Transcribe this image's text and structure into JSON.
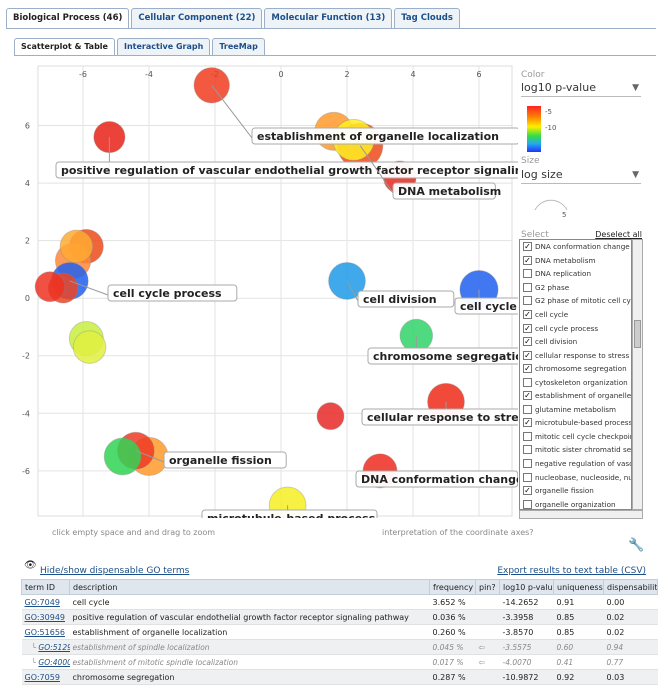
{
  "tabs": [
    {
      "label": "Biological Process (46)",
      "active": true
    },
    {
      "label": "Cellular Component (22)",
      "active": false
    },
    {
      "label": "Molecular Function (13)",
      "active": false
    },
    {
      "label": "Tag Clouds",
      "active": false
    }
  ],
  "subtabs": [
    {
      "label": "Scatterplot & Table",
      "active": true
    },
    {
      "label": "Interactive Graph",
      "active": false
    },
    {
      "label": "TreeMap",
      "active": false
    }
  ],
  "plot": {
    "hint_left": "click empty space and and drag to zoom",
    "hint_right": "interpretation of the coordinate axes?",
    "chart_data": {
      "type": "scatter",
      "xlim": [
        -7,
        7
      ],
      "ylim": [
        -7.5,
        8
      ],
      "x_ticks": [
        "-6",
        "-4",
        "-2",
        "0",
        "2",
        "4",
        "6"
      ],
      "y_ticks": [
        "6",
        "4",
        "2",
        "0",
        "-2",
        "-4",
        "-6"
      ],
      "grid": true,
      "points": [
        {
          "x": -2.1,
          "y": 7.4,
          "size": 0.55,
          "color": "#f03c1e"
        },
        {
          "x": -5.2,
          "y": 5.6,
          "size": 0.4,
          "color": "#e82218"
        },
        {
          "x": 1.6,
          "y": 5.8,
          "size": 0.65,
          "color": "#ff9a2a"
        },
        {
          "x": 2.4,
          "y": 5.3,
          "size": 0.9,
          "color": "#f04a1a"
        },
        {
          "x": 2.2,
          "y": 5.5,
          "size": 0.75,
          "color": "#ffee22"
        },
        {
          "x": 3.6,
          "y": 4.2,
          "size": 0.45,
          "color": "#e8281e"
        },
        {
          "x": -5.9,
          "y": 1.8,
          "size": 0.5,
          "color": "#ee4a1a"
        },
        {
          "x": -6.3,
          "y": 1.3,
          "size": 0.55,
          "color": "#ff8838"
        },
        {
          "x": -6.2,
          "y": 1.8,
          "size": 0.45,
          "color": "#ffaa33"
        },
        {
          "x": -6.4,
          "y": 0.6,
          "size": 0.6,
          "color": "#2060ee"
        },
        {
          "x": -6.6,
          "y": 0.35,
          "size": 0.35,
          "color": "#ee4422"
        },
        {
          "x": -7.0,
          "y": 0.4,
          "size": 0.35,
          "color": "#ee3322"
        },
        {
          "x": -5.9,
          "y": -1.4,
          "size": 0.5,
          "color": "#c8ee40"
        },
        {
          "x": -5.8,
          "y": -1.7,
          "size": 0.45,
          "color": "#e0f040"
        },
        {
          "x": 2.0,
          "y": 0.6,
          "size": 0.6,
          "color": "#1d9ae8"
        },
        {
          "x": 6.0,
          "y": 0.3,
          "size": 0.65,
          "color": "#2060ee"
        },
        {
          "x": 4.1,
          "y": -1.3,
          "size": 0.45,
          "color": "#30d46a"
        },
        {
          "x": 5.0,
          "y": -3.6,
          "size": 0.6,
          "color": "#ee2a18"
        },
        {
          "x": 1.5,
          "y": -4.1,
          "size": 0.25,
          "color": "#e82828"
        },
        {
          "x": -4.0,
          "y": -5.5,
          "size": 0.65,
          "color": "#ff9a2a"
        },
        {
          "x": -4.4,
          "y": -5.3,
          "size": 0.6,
          "color": "#ee3a22"
        },
        {
          "x": -4.8,
          "y": -5.5,
          "size": 0.6,
          "color": "#30d455"
        },
        {
          "x": 3.0,
          "y": -6.0,
          "size": 0.5,
          "color": "#ee2a1e"
        },
        {
          "x": 0.2,
          "y": -7.2,
          "size": 0.6,
          "color": "#f5ee22"
        }
      ],
      "annotations": [
        {
          "text": "establishment of organelle localization",
          "x": -2.1,
          "y": 7.4
        },
        {
          "text": "positive regulation of vascular endothelial growth factor receptor signaling pathway",
          "x": -5.2,
          "y": 5.6
        },
        {
          "text": "DNA metabolism",
          "x": 2.4,
          "y": 5.3
        },
        {
          "text": "cell cycle process",
          "x": -6.4,
          "y": 0.6
        },
        {
          "text": "cell division",
          "x": 2.0,
          "y": 0.6
        },
        {
          "text": "cell cycle",
          "x": 6.0,
          "y": 0.3
        },
        {
          "text": "chromosome segregation",
          "x": 4.1,
          "y": -1.3
        },
        {
          "text": "cellular response to stress",
          "x": 5.0,
          "y": -3.6
        },
        {
          "text": "organelle fission",
          "x": -4.4,
          "y": -5.3
        },
        {
          "text": "DNA conformation change",
          "x": 3.0,
          "y": -6.0
        },
        {
          "text": "microtubule-based process",
          "x": 0.2,
          "y": -7.2
        }
      ]
    }
  },
  "panel": {
    "color_title": "Color",
    "color_value": "log10 p-value",
    "color_ticks": [
      "-5",
      "-10"
    ],
    "size_title": "Size",
    "size_value": "log size",
    "size_tick": "5",
    "select_title": "Select",
    "deselect_label": "Deselect all",
    "items": [
      {
        "label": "DNA conformation change",
        "checked": true
      },
      {
        "label": "DNA metabolism",
        "checked": true
      },
      {
        "label": "DNA replication",
        "checked": false
      },
      {
        "label": "G2 phase",
        "checked": false
      },
      {
        "label": "G2 phase of mitotic cell cycle",
        "checked": false
      },
      {
        "label": "cell cycle",
        "checked": true
      },
      {
        "label": "cell cycle process",
        "checked": true
      },
      {
        "label": "cell division",
        "checked": true
      },
      {
        "label": "cellular response to stress",
        "checked": true
      },
      {
        "label": "chromosome segregation",
        "checked": true
      },
      {
        "label": "cytoskeleton organization",
        "checked": false
      },
      {
        "label": "establishment of organelle l...",
        "checked": true
      },
      {
        "label": "glutamine metabolism",
        "checked": false
      },
      {
        "label": "microtubule-based process",
        "checked": true
      },
      {
        "label": "mitotic cell cycle checkpoint",
        "checked": false
      },
      {
        "label": "mitotic sister chromatid seg...",
        "checked": false
      },
      {
        "label": "negative regulation of vaso...",
        "checked": false
      },
      {
        "label": "nucleobase, nucleoside, nu...",
        "checked": false
      },
      {
        "label": "organelle fission",
        "checked": true
      },
      {
        "label": "organelle organization",
        "checked": false
      }
    ]
  },
  "table": {
    "toggle_label": "Hide/show dispensable GO terms",
    "export_label": "Export results to text table (CSV)",
    "headers": [
      "term ID",
      "description",
      "frequency",
      "pin?",
      "log10 p-value",
      "uniqueness",
      "dispensability"
    ],
    "rows": [
      {
        "id": "GO:7049",
        "desc": "cell cycle",
        "freq": "3.652 %",
        "pin": "",
        "pval": "-14.2652",
        "uniq": "0.91",
        "disp": "0.00",
        "sub": false
      },
      {
        "id": "GO:30949",
        "desc": "positive regulation of vascular endothelial growth factor receptor signaling pathway",
        "freq": "0.036 %",
        "pin": "",
        "pval": "-3.3958",
        "uniq": "0.85",
        "disp": "0.02",
        "sub": false
      },
      {
        "id": "GO:51656",
        "desc": "establishment of organelle localization",
        "freq": "0.260 %",
        "pin": "",
        "pval": "-3.8570",
        "uniq": "0.85",
        "disp": "0.02",
        "sub": false
      },
      {
        "id": "GO:51293",
        "desc": "establishment of spindle localization",
        "freq": "0.045 %",
        "pin": "⇦",
        "pval": "-3.5575",
        "uniq": "0.60",
        "disp": "0.94",
        "sub": true
      },
      {
        "id": "GO:40001",
        "desc": "establishment of mitotic spindle localization",
        "freq": "0.017 %",
        "pin": "⇦",
        "pval": "-4.0070",
        "uniq": "0.41",
        "disp": "0.77",
        "sub": true
      },
      {
        "id": "GO:7059",
        "desc": "chromosome segregation",
        "freq": "0.287 %",
        "pin": "",
        "pval": "-10.9872",
        "uniq": "0.92",
        "disp": "0.03",
        "sub": false
      }
    ]
  }
}
